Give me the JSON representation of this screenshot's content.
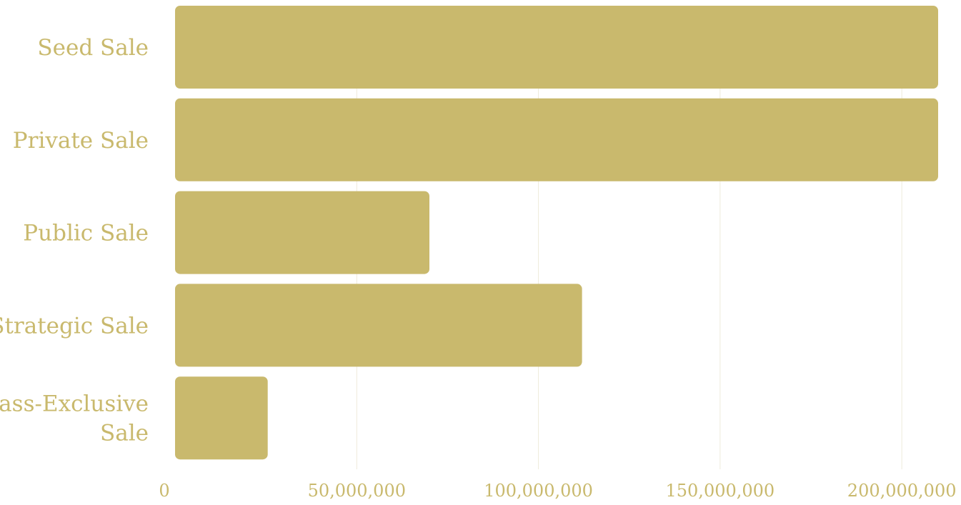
{
  "chart_data": {
    "type": "bar",
    "orientation": "horizontal",
    "categories": [
      "Seed Sale",
      "Private Sale",
      "Public Sale",
      "Strategic Sale",
      "Pass-Exclusive Sale"
    ],
    "category_label_lines": [
      [
        "Seed Sale"
      ],
      [
        "Private Sale"
      ],
      [
        "Public Sale"
      ],
      [
        "Strategic Sale"
      ],
      [
        "Pass-Exclusive",
        "Sale"
      ]
    ],
    "values": [
      210000000,
      210000000,
      70000000,
      112000000,
      25500000
    ],
    "xlim": [
      0,
      210000000
    ],
    "ticks": [
      0,
      50000000,
      100000000,
      150000000,
      200000000
    ],
    "tick_labels": [
      "0",
      "50,000,000",
      "100,000,000",
      "150,000,000",
      "200,000,000"
    ],
    "bar_color": "#c9b96d",
    "label_color": "#c9b96d",
    "grid_color": "#eeeadb",
    "grid": true,
    "legend": "none"
  }
}
